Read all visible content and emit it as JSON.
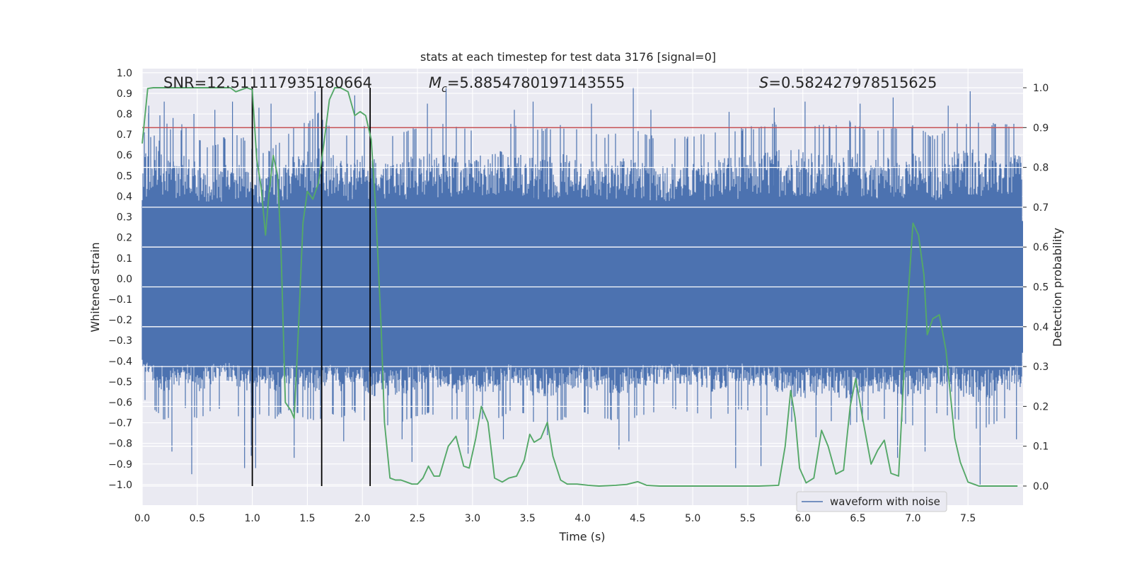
{
  "chart_data": {
    "type": "line",
    "title": "stats at each timestep for test data 3176 [signal=0]",
    "xlabel": "Time (s)",
    "ylabel": "Whitened strain",
    "ylabel_right": "Detection probability",
    "xlim": [
      0.0,
      8.0
    ],
    "ylim": [
      -1.1,
      1.02
    ],
    "ylim_right": [
      -0.048,
      1.048
    ],
    "x_ticks": [
      "0.0",
      "0.5",
      "1.0",
      "1.5",
      "2.0",
      "2.5",
      "3.0",
      "3.5",
      "4.0",
      "4.5",
      "5.0",
      "5.5",
      "6.0",
      "6.5",
      "7.0",
      "7.5"
    ],
    "y_ticks": [
      "1.0",
      "0.9",
      "0.8",
      "0.7",
      "0.6",
      "0.5",
      "0.4",
      "0.3",
      "0.2",
      "0.1",
      "0.0",
      "−0.1",
      "−0.2",
      "−0.3",
      "−0.4",
      "−0.5",
      "−0.6",
      "−0.7",
      "−0.8",
      "−0.9",
      "−1.0"
    ],
    "y_right_ticks": [
      "1.0",
      "0.9",
      "0.8",
      "0.7",
      "0.6",
      "0.5",
      "0.4",
      "0.3",
      "0.2",
      "0.1",
      "0.0"
    ],
    "annotations": {
      "snr": "SNR=12.511117935180664",
      "mc_symbol": "M",
      "mc_sub": "c",
      "mc_value": "=5.8854780197143555",
      "s_symbol": "S",
      "s_value": "=0.582427978515625"
    },
    "grid": true,
    "legend": {
      "position": "lower-right",
      "entries": [
        "waveform with noise"
      ]
    },
    "colors": {
      "waveform": "#4c72b0",
      "probability": "#55a868",
      "threshold": "#c44e52",
      "markers": "#000000",
      "background": "#eaeaf2",
      "grid": "#ffffff"
    },
    "threshold": 0.9,
    "vertical_markers": [
      1.0,
      1.63,
      2.07
    ],
    "series": [
      {
        "name": "waveform with noise",
        "envelope_upper": [
          [
            0.0,
            0.55
          ],
          [
            0.1,
            0.72
          ],
          [
            0.2,
            0.62
          ],
          [
            0.3,
            0.55
          ],
          [
            0.4,
            0.6
          ],
          [
            0.5,
            0.55
          ],
          [
            0.6,
            0.5
          ],
          [
            0.7,
            0.52
          ],
          [
            0.8,
            0.58
          ],
          [
            0.9,
            0.55
          ],
          [
            1.0,
            0.5
          ],
          [
            1.1,
            0.48
          ],
          [
            1.2,
            0.5
          ],
          [
            1.3,
            0.55
          ],
          [
            1.4,
            0.6
          ],
          [
            1.5,
            0.62
          ],
          [
            1.6,
            0.65
          ],
          [
            1.7,
            0.6
          ],
          [
            1.8,
            0.58
          ],
          [
            1.9,
            0.55
          ],
          [
            2.0,
            0.6
          ],
          [
            2.2,
            0.55
          ],
          [
            2.4,
            0.58
          ],
          [
            2.6,
            0.6
          ],
          [
            2.8,
            0.6
          ],
          [
            3.0,
            0.58
          ],
          [
            3.2,
            0.62
          ],
          [
            3.4,
            0.6
          ],
          [
            3.6,
            0.58
          ],
          [
            3.8,
            0.6
          ],
          [
            4.0,
            0.58
          ],
          [
            4.2,
            0.55
          ],
          [
            4.4,
            0.6
          ],
          [
            4.6,
            0.55
          ],
          [
            4.8,
            0.55
          ],
          [
            5.0,
            0.55
          ],
          [
            5.2,
            0.58
          ],
          [
            5.4,
            0.58
          ],
          [
            5.6,
            0.6
          ],
          [
            5.8,
            0.62
          ],
          [
            6.0,
            0.62
          ],
          [
            6.2,
            0.6
          ],
          [
            6.4,
            0.62
          ],
          [
            6.6,
            0.58
          ],
          [
            6.8,
            0.6
          ],
          [
            7.0,
            0.6
          ],
          [
            7.2,
            0.55
          ],
          [
            7.4,
            0.62
          ],
          [
            7.6,
            0.62
          ],
          [
            7.8,
            0.6
          ],
          [
            8.0,
            0.6
          ]
        ],
        "envelope_lower": [
          [
            0.0,
            -0.45
          ],
          [
            0.1,
            -0.5
          ],
          [
            0.2,
            -0.55
          ],
          [
            0.3,
            -0.52
          ],
          [
            0.4,
            -0.5
          ],
          [
            0.5,
            -0.55
          ],
          [
            0.6,
            -0.52
          ],
          [
            0.7,
            -0.5
          ],
          [
            0.8,
            -0.5
          ],
          [
            0.9,
            -0.55
          ],
          [
            1.0,
            -0.55
          ],
          [
            1.1,
            -0.52
          ],
          [
            1.2,
            -0.55
          ],
          [
            1.3,
            -0.5
          ],
          [
            1.4,
            -0.52
          ],
          [
            1.5,
            -0.55
          ],
          [
            1.6,
            -0.55
          ],
          [
            1.7,
            -0.52
          ],
          [
            1.8,
            -0.55
          ],
          [
            1.9,
            -0.5
          ],
          [
            2.0,
            -0.55
          ],
          [
            2.2,
            -0.58
          ],
          [
            2.4,
            -0.55
          ],
          [
            2.6,
            -0.52
          ],
          [
            2.8,
            -0.55
          ],
          [
            3.0,
            -0.55
          ],
          [
            3.2,
            -0.55
          ],
          [
            3.4,
            -0.5
          ],
          [
            3.6,
            -0.58
          ],
          [
            3.8,
            -0.55
          ],
          [
            4.0,
            -0.52
          ],
          [
            4.2,
            -0.55
          ],
          [
            4.4,
            -0.55
          ],
          [
            4.6,
            -0.52
          ],
          [
            4.8,
            -0.5
          ],
          [
            5.0,
            -0.52
          ],
          [
            5.2,
            -0.55
          ],
          [
            5.4,
            -0.5
          ],
          [
            5.6,
            -0.52
          ],
          [
            5.8,
            -0.55
          ],
          [
            6.0,
            -0.58
          ],
          [
            6.2,
            -0.55
          ],
          [
            6.4,
            -0.58
          ],
          [
            6.6,
            -0.55
          ],
          [
            6.8,
            -0.55
          ],
          [
            7.0,
            -0.58
          ],
          [
            7.2,
            -0.52
          ],
          [
            7.4,
            -0.55
          ],
          [
            7.6,
            -0.6
          ],
          [
            7.8,
            -0.55
          ],
          [
            8.0,
            -0.52
          ]
        ],
        "peaks": [
          [
            0.06,
            0.84
          ],
          [
            0.2,
            0.86
          ],
          [
            0.28,
            0.78
          ],
          [
            0.36,
            0.75
          ],
          [
            0.47,
            0.8
          ],
          [
            0.66,
            0.82
          ],
          [
            0.82,
            0.86
          ],
          [
            1.06,
            0.83
          ],
          [
            1.17,
            0.85
          ],
          [
            1.57,
            0.91
          ],
          [
            1.93,
            0.89
          ],
          [
            2.59,
            0.85
          ],
          [
            2.76,
            0.93
          ],
          [
            3.38,
            0.82
          ],
          [
            3.55,
            0.86
          ],
          [
            4.08,
            0.85
          ],
          [
            4.46,
            0.93
          ],
          [
            4.62,
            0.82
          ],
          [
            5.33,
            0.81
          ],
          [
            5.74,
            0.83
          ],
          [
            6.02,
            0.86
          ],
          [
            6.52,
            0.85
          ],
          [
            6.82,
            0.88
          ],
          [
            7.32,
            0.84
          ],
          [
            7.52,
            0.91
          ],
          [
            7.84,
            0.75
          ],
          [
            0.27,
            -0.84
          ],
          [
            0.45,
            -0.95
          ],
          [
            0.93,
            -0.92
          ],
          [
            0.99,
            -0.86
          ],
          [
            1.03,
            -0.92
          ],
          [
            1.38,
            -0.87
          ],
          [
            1.83,
            -0.79
          ],
          [
            2.36,
            -0.78
          ],
          [
            2.45,
            -0.89
          ],
          [
            2.96,
            -0.85
          ],
          [
            3.28,
            -0.78
          ],
          [
            3.68,
            -0.76
          ],
          [
            4.33,
            -0.83
          ],
          [
            4.42,
            -0.79
          ],
          [
            5.39,
            -0.92
          ],
          [
            5.62,
            -0.91
          ],
          [
            6.12,
            -0.77
          ],
          [
            6.86,
            -0.87
          ],
          [
            7.11,
            -0.84
          ],
          [
            7.61,
            -1.0
          ],
          [
            7.94,
            -0.78
          ]
        ]
      },
      {
        "name": "detection probability",
        "axis": "right",
        "points": [
          [
            0.0,
            0.86
          ],
          [
            0.05,
            0.998
          ],
          [
            0.1,
            1.0
          ],
          [
            0.2,
            1.0
          ],
          [
            0.3,
            1.0
          ],
          [
            0.4,
            1.0
          ],
          [
            0.5,
            1.0
          ],
          [
            0.6,
            1.0
          ],
          [
            0.7,
            1.0
          ],
          [
            0.75,
            1.0
          ],
          [
            0.8,
            1.0
          ],
          [
            0.85,
            0.99
          ],
          [
            0.9,
            0.995
          ],
          [
            0.95,
            1.0
          ],
          [
            1.0,
            0.995
          ],
          [
            1.04,
            0.82
          ],
          [
            1.08,
            0.75
          ],
          [
            1.12,
            0.63
          ],
          [
            1.15,
            0.73
          ],
          [
            1.19,
            0.83
          ],
          [
            1.23,
            0.78
          ],
          [
            1.26,
            0.6
          ],
          [
            1.3,
            0.21
          ],
          [
            1.35,
            0.19
          ],
          [
            1.38,
            0.17
          ],
          [
            1.42,
            0.4
          ],
          [
            1.46,
            0.66
          ],
          [
            1.5,
            0.74
          ],
          [
            1.55,
            0.72
          ],
          [
            1.6,
            0.76
          ],
          [
            1.65,
            0.86
          ],
          [
            1.7,
            0.97
          ],
          [
            1.75,
            1.0
          ],
          [
            1.8,
            1.0
          ],
          [
            1.87,
            0.99
          ],
          [
            1.93,
            0.93
          ],
          [
            1.98,
            0.94
          ],
          [
            2.03,
            0.93
          ],
          [
            2.08,
            0.87
          ],
          [
            2.12,
            0.7
          ],
          [
            2.17,
            0.4
          ],
          [
            2.2,
            0.16
          ],
          [
            2.25,
            0.02
          ],
          [
            2.3,
            0.015
          ],
          [
            2.35,
            0.015
          ],
          [
            2.4,
            0.01
          ],
          [
            2.45,
            0.005
          ],
          [
            2.5,
            0.005
          ],
          [
            2.55,
            0.02
          ],
          [
            2.6,
            0.05
          ],
          [
            2.65,
            0.025
          ],
          [
            2.7,
            0.025
          ],
          [
            2.78,
            0.1
          ],
          [
            2.85,
            0.125
          ],
          [
            2.92,
            0.05
          ],
          [
            2.97,
            0.045
          ],
          [
            3.03,
            0.12
          ],
          [
            3.08,
            0.2
          ],
          [
            3.14,
            0.16
          ],
          [
            3.2,
            0.02
          ],
          [
            3.27,
            0.01
          ],
          [
            3.33,
            0.02
          ],
          [
            3.4,
            0.025
          ],
          [
            3.47,
            0.065
          ],
          [
            3.52,
            0.13
          ],
          [
            3.56,
            0.11
          ],
          [
            3.62,
            0.12
          ],
          [
            3.68,
            0.16
          ],
          [
            3.73,
            0.075
          ],
          [
            3.8,
            0.015
          ],
          [
            3.86,
            0.005
          ],
          [
            3.95,
            0.005
          ],
          [
            4.05,
            0.002
          ],
          [
            4.15,
            0.0
          ],
          [
            4.3,
            0.002
          ],
          [
            4.4,
            0.004
          ],
          [
            4.5,
            0.011
          ],
          [
            4.58,
            0.002
          ],
          [
            4.7,
            0.0
          ],
          [
            5.0,
            0.0
          ],
          [
            5.3,
            0.0
          ],
          [
            5.6,
            0.0
          ],
          [
            5.78,
            0.002
          ],
          [
            5.84,
            0.1
          ],
          [
            5.89,
            0.24
          ],
          [
            5.93,
            0.17
          ],
          [
            5.97,
            0.045
          ],
          [
            6.03,
            0.008
          ],
          [
            6.1,
            0.02
          ],
          [
            6.17,
            0.14
          ],
          [
            6.23,
            0.1
          ],
          [
            6.3,
            0.03
          ],
          [
            6.37,
            0.04
          ],
          [
            6.43,
            0.2
          ],
          [
            6.48,
            0.27
          ],
          [
            6.55,
            0.16
          ],
          [
            6.62,
            0.055
          ],
          [
            6.68,
            0.09
          ],
          [
            6.74,
            0.115
          ],
          [
            6.8,
            0.032
          ],
          [
            6.87,
            0.025
          ],
          [
            6.95,
            0.45
          ],
          [
            7.0,
            0.66
          ],
          [
            7.05,
            0.63
          ],
          [
            7.1,
            0.53
          ],
          [
            7.13,
            0.38
          ],
          [
            7.18,
            0.42
          ],
          [
            7.24,
            0.43
          ],
          [
            7.3,
            0.34
          ],
          [
            7.38,
            0.12
          ],
          [
            7.43,
            0.06
          ],
          [
            7.5,
            0.01
          ],
          [
            7.55,
            0.005
          ],
          [
            7.6,
            0.0
          ],
          [
            7.7,
            0.0
          ],
          [
            7.8,
            0.0
          ],
          [
            7.95,
            0.0
          ]
        ]
      }
    ]
  }
}
